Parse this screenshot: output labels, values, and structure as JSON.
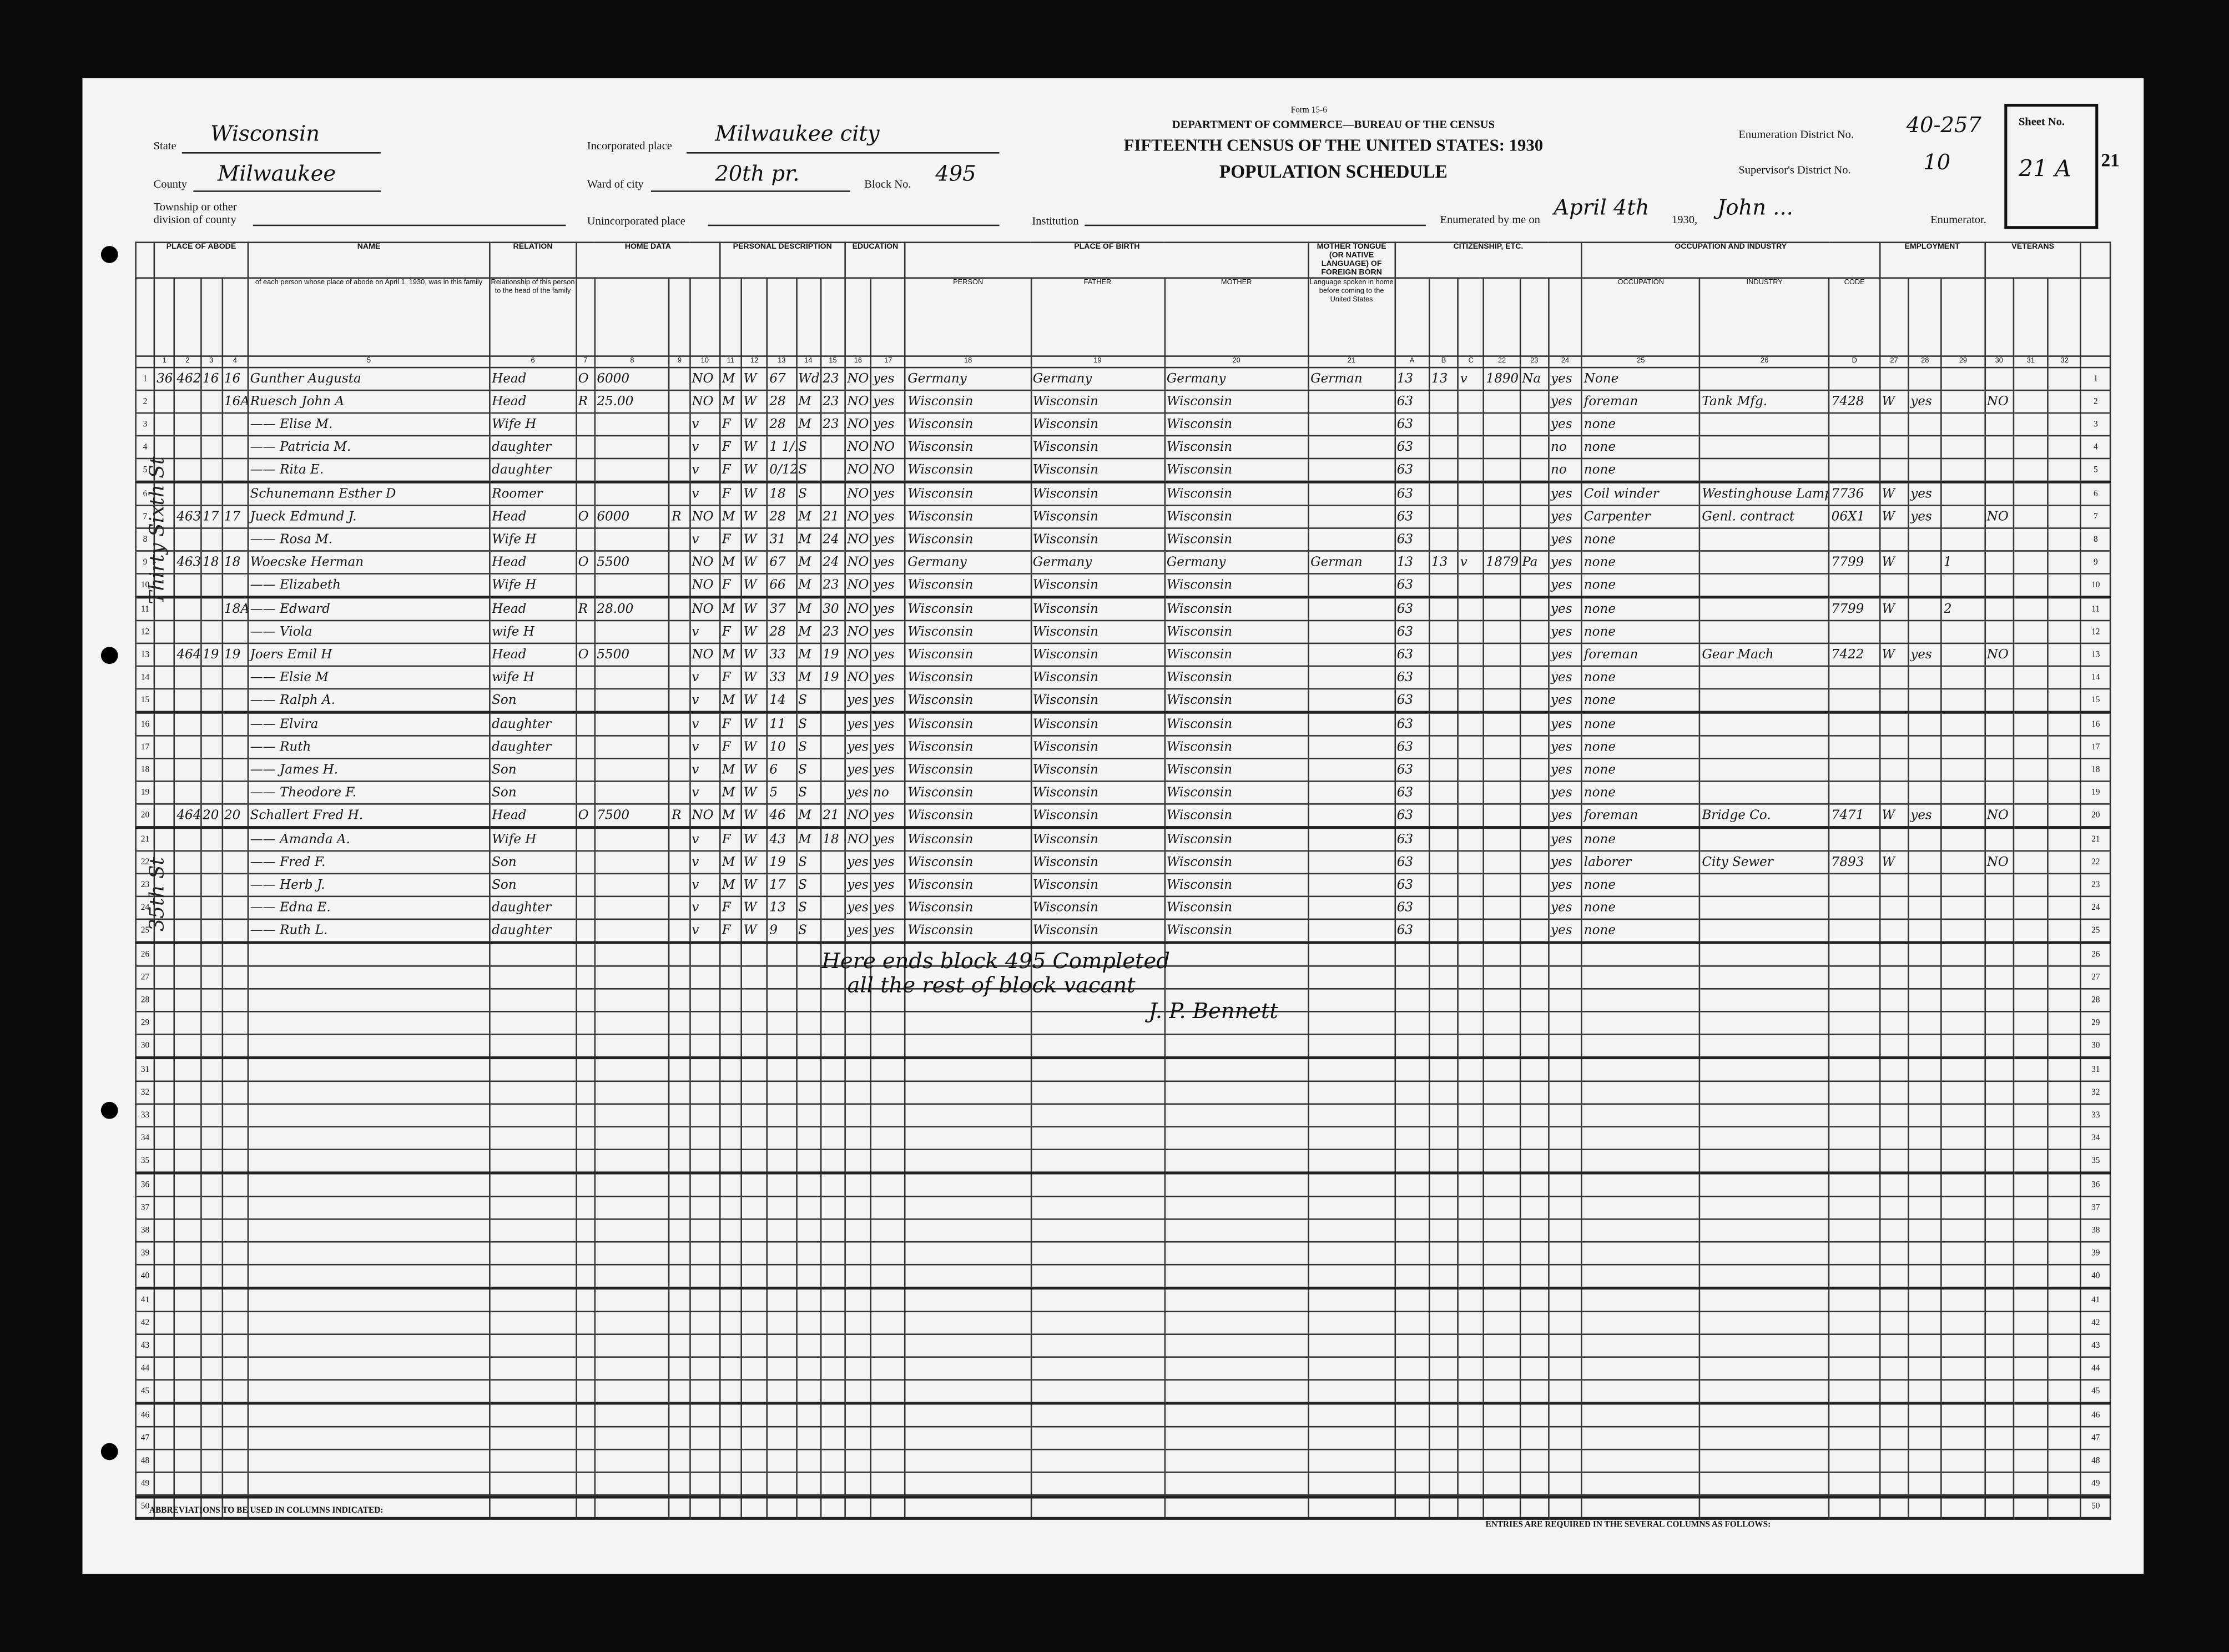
{
  "header": {
    "form_no": "Form 15-6",
    "department": "DEPARTMENT OF COMMERCE—BUREAU OF THE CENSUS",
    "title": "FIFTEENTH CENSUS OF THE UNITED STATES: 1930",
    "subtitle": "POPULATION SCHEDULE",
    "state_label": "State",
    "state": "Wisconsin",
    "county_label": "County",
    "county": "Milwaukee",
    "township_label": "Township or other division of county",
    "township": "",
    "incorporated_label": "Incorporated place",
    "incorporated": "Milwaukee city",
    "ward_label": "Ward of city",
    "ward": "20th pr.",
    "block_label": "Block No.",
    "block": "495",
    "unincorporated_label": "Unincorporated place",
    "unincorporated": "",
    "institution_label": "Institution",
    "institution": "",
    "ed_label": "Enumeration District No.",
    "ed": "40-257",
    "supervisor_label": "Supervisor's District No.",
    "supervisor": "10",
    "enumerated_label": "Enumerated by me on",
    "enumerated_date": "April 4th",
    "year": "1930,",
    "enumerator": "John ...",
    "enumerator_label": "Enumerator.",
    "sheet_label": "Sheet No.",
    "sheet": "21 A",
    "stamp": "21"
  },
  "column_groups": [
    "PLACE OF ABODE",
    "NAME",
    "RELATION",
    "HOME DATA",
    "PERSONAL DESCRIPTION",
    "EDUCATION",
    "PLACE OF BIRTH",
    "MOTHER TONGUE (OR NATIVE LANGUAGE) OF FOREIGN BORN",
    "CITIZENSHIP, ETC.",
    "OCCUPATION AND INDUSTRY",
    "EMPLOYMENT",
    "VETERANS"
  ],
  "column_headers": {
    "name": "of each person whose place of abode on April 1, 1930, was in this family",
    "relation": "Relationship of this person to the head of the family",
    "person": "PERSON",
    "father": "FATHER",
    "mother": "MOTHER",
    "tongue": "Language spoken in home before coming to the United States",
    "code": "CODE",
    "occupation": "OCCUPATION",
    "industry": "INDUSTRY",
    "code_d": "CODE"
  },
  "column_numbers": [
    "",
    "1",
    "2",
    "3",
    "4",
    "5",
    "6",
    "7",
    "8",
    "9",
    "10",
    "11",
    "12",
    "13",
    "14",
    "15",
    "16",
    "17",
    "18",
    "19",
    "20",
    "21",
    "A",
    "B",
    "C",
    "22",
    "23",
    "24",
    "25",
    "26",
    "D",
    "27",
    "28",
    "29",
    "30",
    "31",
    "32",
    ""
  ],
  "rows": [
    {
      "c1": "36",
      "house": "4624",
      "dw": "16",
      "fam": "16",
      "name": "Gunther Augusta",
      "rel": "Head",
      "ten": "O",
      "val": "6000",
      "radio": "",
      "farm": "NO",
      "sex": "M",
      "race": "W",
      "age": "67",
      "mar": "Wd",
      "agem": "23",
      "sch": "NO",
      "read": "yes",
      "bp": "Germany",
      "bf": "Germany",
      "bm": "Germany",
      "tongue": "German",
      "a": "13",
      "b": "13",
      "c": "v",
      "imm": "1890",
      "nat": "Na",
      "eng": "yes",
      "occ": "None",
      "ind": "",
      "d": "",
      "cls": "",
      "emp": "",
      "un": "",
      "vet": ""
    },
    {
      "c1": "",
      "house": "",
      "dw": "",
      "fam": "16A",
      "name": "Ruesch John A",
      "rel": "Head",
      "ten": "R",
      "val": "25.00",
      "radio": "",
      "farm": "NO",
      "sex": "M",
      "race": "W",
      "age": "28",
      "mar": "M",
      "agem": "23",
      "sch": "NO",
      "read": "yes",
      "bp": "Wisconsin",
      "bf": "Wisconsin",
      "bm": "Wisconsin",
      "tongue": "",
      "a": "63",
      "b": "",
      "c": "",
      "imm": "",
      "nat": "",
      "eng": "yes",
      "occ": "foreman",
      "ind": "Tank Mfg.",
      "d": "7428",
      "cls": "W",
      "emp": "yes",
      "un": "",
      "vet": "NO"
    },
    {
      "c1": "",
      "house": "",
      "dw": "",
      "fam": "",
      "name": "—— Elise M.",
      "rel": "Wife H",
      "ten": "",
      "val": "",
      "radio": "",
      "farm": "v",
      "sex": "F",
      "race": "W",
      "age": "28",
      "mar": "M",
      "agem": "23",
      "sch": "NO",
      "read": "yes",
      "bp": "Wisconsin",
      "bf": "Wisconsin",
      "bm": "Wisconsin",
      "tongue": "",
      "a": "63",
      "b": "",
      "c": "",
      "imm": "",
      "nat": "",
      "eng": "yes",
      "occ": "none",
      "ind": "",
      "d": "",
      "cls": "",
      "emp": "",
      "un": "",
      "vet": ""
    },
    {
      "c1": "",
      "house": "",
      "dw": "",
      "fam": "",
      "name": "—— Patricia M.",
      "rel": "daughter",
      "ten": "",
      "val": "",
      "radio": "",
      "farm": "v",
      "sex": "F",
      "race": "W",
      "age": "1 1/12",
      "mar": "S",
      "agem": "",
      "sch": "NO",
      "read": "NO",
      "bp": "Wisconsin",
      "bf": "Wisconsin",
      "bm": "Wisconsin",
      "tongue": "",
      "a": "63",
      "b": "",
      "c": "",
      "imm": "",
      "nat": "",
      "eng": "no",
      "occ": "none",
      "ind": "",
      "d": "",
      "cls": "",
      "emp": "",
      "un": "",
      "vet": ""
    },
    {
      "c1": "",
      "house": "",
      "dw": "",
      "fam": "",
      "name": "—— Rita E.",
      "rel": "daughter",
      "ten": "",
      "val": "",
      "radio": "",
      "farm": "v",
      "sex": "F",
      "race": "W",
      "age": "0/12",
      "mar": "S",
      "agem": "",
      "sch": "NO",
      "read": "NO",
      "bp": "Wisconsin",
      "bf": "Wisconsin",
      "bm": "Wisconsin",
      "tongue": "",
      "a": "63",
      "b": "",
      "c": "",
      "imm": "",
      "nat": "",
      "eng": "no",
      "occ": "none",
      "ind": "",
      "d": "",
      "cls": "",
      "emp": "",
      "un": "",
      "vet": ""
    },
    {
      "c1": "",
      "house": "",
      "dw": "",
      "fam": "",
      "name": "Schunemann Esther D",
      "rel": "Roomer",
      "ten": "",
      "val": "",
      "radio": "",
      "farm": "v",
      "sex": "F",
      "race": "W",
      "age": "18",
      "mar": "S",
      "agem": "",
      "sch": "NO",
      "read": "yes",
      "bp": "Wisconsin",
      "bf": "Wisconsin",
      "bm": "Wisconsin",
      "tongue": "",
      "a": "63",
      "b": "",
      "c": "",
      "imm": "",
      "nat": "",
      "eng": "yes",
      "occ": "Coil winder",
      "ind": "Westinghouse Lamp Co.",
      "d": "7736",
      "cls": "W",
      "emp": "yes",
      "un": "",
      "vet": ""
    },
    {
      "c1": "",
      "house": "4630",
      "dw": "17",
      "fam": "17",
      "name": "Jueck Edmund J.",
      "rel": "Head",
      "ten": "O",
      "val": "6000",
      "radio": "R",
      "farm": "NO",
      "sex": "M",
      "race": "W",
      "age": "28",
      "mar": "M",
      "agem": "21",
      "sch": "NO",
      "read": "yes",
      "bp": "Wisconsin",
      "bf": "Wisconsin",
      "bm": "Wisconsin",
      "tongue": "",
      "a": "63",
      "b": "",
      "c": "",
      "imm": "",
      "nat": "",
      "eng": "yes",
      "occ": "Carpenter",
      "ind": "Genl. contract",
      "d": "06X1",
      "cls": "W",
      "emp": "yes",
      "un": "",
      "vet": "NO"
    },
    {
      "c1": "",
      "house": "",
      "dw": "",
      "fam": "",
      "name": "—— Rosa M.",
      "rel": "Wife H",
      "ten": "",
      "val": "",
      "radio": "",
      "farm": "v",
      "sex": "F",
      "race": "W",
      "age": "31",
      "mar": "M",
      "agem": "24",
      "sch": "NO",
      "read": "yes",
      "bp": "Wisconsin",
      "bf": "Wisconsin",
      "bm": "Wisconsin",
      "tongue": "",
      "a": "63",
      "b": "",
      "c": "",
      "imm": "",
      "nat": "",
      "eng": "yes",
      "occ": "none",
      "ind": "",
      "d": "",
      "cls": "",
      "emp": "",
      "un": "",
      "vet": ""
    },
    {
      "c1": "",
      "house": "4634",
      "dw": "18",
      "fam": "18",
      "name": "Woecske Herman",
      "rel": "Head",
      "ten": "O",
      "val": "5500",
      "radio": "",
      "farm": "NO",
      "sex": "M",
      "race": "W",
      "age": "67",
      "mar": "M",
      "agem": "24",
      "sch": "NO",
      "read": "yes",
      "bp": "Germany",
      "bf": "Germany",
      "bm": "Germany",
      "tongue": "German",
      "a": "13",
      "b": "13",
      "c": "v",
      "imm": "1879",
      "nat": "Pa",
      "eng": "yes",
      "occ": "none",
      "ind": "",
      "d": "7799",
      "cls": "W",
      "emp": "",
      "un": "1",
      "vet": ""
    },
    {
      "c1": "",
      "house": "",
      "dw": "",
      "fam": "",
      "name": "—— Elizabeth",
      "rel": "Wife H",
      "ten": "",
      "val": "",
      "radio": "",
      "farm": "NO",
      "sex": "F",
      "race": "W",
      "age": "66",
      "mar": "M",
      "agem": "23",
      "sch": "NO",
      "read": "yes",
      "bp": "Wisconsin",
      "bf": "Wisconsin",
      "bm": "Wisconsin",
      "tongue": "",
      "a": "63",
      "b": "",
      "c": "",
      "imm": "",
      "nat": "",
      "eng": "yes",
      "occ": "none",
      "ind": "",
      "d": "",
      "cls": "",
      "emp": "",
      "un": "",
      "vet": ""
    },
    {
      "c1": "",
      "house": "",
      "dw": "",
      "fam": "18A",
      "name": "—— Edward",
      "rel": "Head",
      "ten": "R",
      "val": "28.00",
      "radio": "",
      "farm": "NO",
      "sex": "M",
      "race": "W",
      "age": "37",
      "mar": "M",
      "agem": "30",
      "sch": "NO",
      "read": "yes",
      "bp": "Wisconsin",
      "bf": "Wisconsin",
      "bm": "Wisconsin",
      "tongue": "",
      "a": "63",
      "b": "",
      "c": "",
      "imm": "",
      "nat": "",
      "eng": "yes",
      "occ": "none",
      "ind": "",
      "d": "7799",
      "cls": "W",
      "emp": "",
      "un": "2",
      "vet": ""
    },
    {
      "c1": "",
      "house": "",
      "dw": "",
      "fam": "",
      "name": "—— Viola",
      "rel": "wife H",
      "ten": "",
      "val": "",
      "radio": "",
      "farm": "v",
      "sex": "F",
      "race": "W",
      "age": "28",
      "mar": "M",
      "agem": "23",
      "sch": "NO",
      "read": "yes",
      "bp": "Wisconsin",
      "bf": "Wisconsin",
      "bm": "Wisconsin",
      "tongue": "",
      "a": "63",
      "b": "",
      "c": "",
      "imm": "",
      "nat": "",
      "eng": "yes",
      "occ": "none",
      "ind": "",
      "d": "",
      "cls": "",
      "emp": "",
      "un": "",
      "vet": ""
    },
    {
      "c1": "",
      "house": "4640",
      "dw": "19",
      "fam": "19",
      "name": "Joers Emil H",
      "rel": "Head",
      "ten": "O",
      "val": "5500",
      "radio": "",
      "farm": "NO",
      "sex": "M",
      "race": "W",
      "age": "33",
      "mar": "M",
      "agem": "19",
      "sch": "NO",
      "read": "yes",
      "bp": "Wisconsin",
      "bf": "Wisconsin",
      "bm": "Wisconsin",
      "tongue": "",
      "a": "63",
      "b": "",
      "c": "",
      "imm": "",
      "nat": "",
      "eng": "yes",
      "occ": "foreman",
      "ind": "Gear Mach",
      "d": "7422",
      "cls": "W",
      "emp": "yes",
      "un": "",
      "vet": "NO"
    },
    {
      "c1": "",
      "house": "",
      "dw": "",
      "fam": "",
      "name": "—— Elsie M",
      "rel": "wife H",
      "ten": "",
      "val": "",
      "radio": "",
      "farm": "v",
      "sex": "F",
      "race": "W",
      "age": "33",
      "mar": "M",
      "agem": "19",
      "sch": "NO",
      "read": "yes",
      "bp": "Wisconsin",
      "bf": "Wisconsin",
      "bm": "Wisconsin",
      "tongue": "",
      "a": "63",
      "b": "",
      "c": "",
      "imm": "",
      "nat": "",
      "eng": "yes",
      "occ": "none",
      "ind": "",
      "d": "",
      "cls": "",
      "emp": "",
      "un": "",
      "vet": ""
    },
    {
      "c1": "",
      "house": "",
      "dw": "",
      "fam": "",
      "name": "—— Ralph A.",
      "rel": "Son",
      "ten": "",
      "val": "",
      "radio": "",
      "farm": "v",
      "sex": "M",
      "race": "W",
      "age": "14",
      "mar": "S",
      "agem": "",
      "sch": "yes",
      "read": "yes",
      "bp": "Wisconsin",
      "bf": "Wisconsin",
      "bm": "Wisconsin",
      "tongue": "",
      "a": "63",
      "b": "",
      "c": "",
      "imm": "",
      "nat": "",
      "eng": "yes",
      "occ": "none",
      "ind": "",
      "d": "",
      "cls": "",
      "emp": "",
      "un": "",
      "vet": ""
    },
    {
      "c1": "",
      "house": "",
      "dw": "",
      "fam": "",
      "name": "—— Elvira",
      "rel": "daughter",
      "ten": "",
      "val": "",
      "radio": "",
      "farm": "v",
      "sex": "F",
      "race": "W",
      "age": "11",
      "mar": "S",
      "agem": "",
      "sch": "yes",
      "read": "yes",
      "bp": "Wisconsin",
      "bf": "Wisconsin",
      "bm": "Wisconsin",
      "tongue": "",
      "a": "63",
      "b": "",
      "c": "",
      "imm": "",
      "nat": "",
      "eng": "yes",
      "occ": "none",
      "ind": "",
      "d": "",
      "cls": "",
      "emp": "",
      "un": "",
      "vet": ""
    },
    {
      "c1": "",
      "house": "",
      "dw": "",
      "fam": "",
      "name": "—— Ruth",
      "rel": "daughter",
      "ten": "",
      "val": "",
      "radio": "",
      "farm": "v",
      "sex": "F",
      "race": "W",
      "age": "10",
      "mar": "S",
      "agem": "",
      "sch": "yes",
      "read": "yes",
      "bp": "Wisconsin",
      "bf": "Wisconsin",
      "bm": "Wisconsin",
      "tongue": "",
      "a": "63",
      "b": "",
      "c": "",
      "imm": "",
      "nat": "",
      "eng": "yes",
      "occ": "none",
      "ind": "",
      "d": "",
      "cls": "",
      "emp": "",
      "un": "",
      "vet": ""
    },
    {
      "c1": "",
      "house": "",
      "dw": "",
      "fam": "",
      "name": "—— James H.",
      "rel": "Son",
      "ten": "",
      "val": "",
      "radio": "",
      "farm": "v",
      "sex": "M",
      "race": "W",
      "age": "6",
      "mar": "S",
      "agem": "",
      "sch": "yes",
      "read": "yes",
      "bp": "Wisconsin",
      "bf": "Wisconsin",
      "bm": "Wisconsin",
      "tongue": "",
      "a": "63",
      "b": "",
      "c": "",
      "imm": "",
      "nat": "",
      "eng": "yes",
      "occ": "none",
      "ind": "",
      "d": "",
      "cls": "",
      "emp": "",
      "un": "",
      "vet": ""
    },
    {
      "c1": "",
      "house": "",
      "dw": "",
      "fam": "",
      "name": "—— Theodore F.",
      "rel": "Son",
      "ten": "",
      "val": "",
      "radio": "",
      "farm": "v",
      "sex": "M",
      "race": "W",
      "age": "5",
      "mar": "S",
      "agem": "",
      "sch": "yes",
      "read": "no",
      "bp": "Wisconsin",
      "bf": "Wisconsin",
      "bm": "Wisconsin",
      "tongue": "",
      "a": "63",
      "b": "",
      "c": "",
      "imm": "",
      "nat": "",
      "eng": "yes",
      "occ": "none",
      "ind": "",
      "d": "",
      "cls": "",
      "emp": "",
      "un": "",
      "vet": ""
    },
    {
      "c1": "",
      "house": "4642",
      "dw": "20",
      "fam": "20",
      "name": "Schallert Fred H.",
      "rel": "Head",
      "ten": "O",
      "val": "7500",
      "radio": "R",
      "farm": "NO",
      "sex": "M",
      "race": "W",
      "age": "46",
      "mar": "M",
      "agem": "21",
      "sch": "NO",
      "read": "yes",
      "bp": "Wisconsin",
      "bf": "Wisconsin",
      "bm": "Wisconsin",
      "tongue": "",
      "a": "63",
      "b": "",
      "c": "",
      "imm": "",
      "nat": "",
      "eng": "yes",
      "occ": "foreman",
      "ind": "Bridge Co.",
      "d": "7471",
      "cls": "W",
      "emp": "yes",
      "un": "",
      "vet": "NO"
    },
    {
      "c1": "",
      "house": "",
      "dw": "",
      "fam": "",
      "name": "—— Amanda A.",
      "rel": "Wife H",
      "ten": "",
      "val": "",
      "radio": "",
      "farm": "v",
      "sex": "F",
      "race": "W",
      "age": "43",
      "mar": "M",
      "agem": "18",
      "sch": "NO",
      "read": "yes",
      "bp": "Wisconsin",
      "bf": "Wisconsin",
      "bm": "Wisconsin",
      "tongue": "",
      "a": "63",
      "b": "",
      "c": "",
      "imm": "",
      "nat": "",
      "eng": "yes",
      "occ": "none",
      "ind": "",
      "d": "",
      "cls": "",
      "emp": "",
      "un": "",
      "vet": ""
    },
    {
      "c1": "",
      "house": "",
      "dw": "",
      "fam": "",
      "name": "—— Fred F.",
      "rel": "Son",
      "ten": "",
      "val": "",
      "radio": "",
      "farm": "v",
      "sex": "M",
      "race": "W",
      "age": "19",
      "mar": "S",
      "agem": "",
      "sch": "yes",
      "read": "yes",
      "bp": "Wisconsin",
      "bf": "Wisconsin",
      "bm": "Wisconsin",
      "tongue": "",
      "a": "63",
      "b": "",
      "c": "",
      "imm": "",
      "nat": "",
      "eng": "yes",
      "occ": "laborer",
      "ind": "City Sewer",
      "d": "7893",
      "cls": "W",
      "emp": "",
      "un": "",
      "vet": "NO"
    },
    {
      "c1": "",
      "house": "",
      "dw": "",
      "fam": "",
      "name": "—— Herb J.",
      "rel": "Son",
      "ten": "",
      "val": "",
      "radio": "",
      "farm": "v",
      "sex": "M",
      "race": "W",
      "age": "17",
      "mar": "S",
      "agem": "",
      "sch": "yes",
      "read": "yes",
      "bp": "Wisconsin",
      "bf": "Wisconsin",
      "bm": "Wisconsin",
      "tongue": "",
      "a": "63",
      "b": "",
      "c": "",
      "imm": "",
      "nat": "",
      "eng": "yes",
      "occ": "none",
      "ind": "",
      "d": "",
      "cls": "",
      "emp": "",
      "un": "",
      "vet": ""
    },
    {
      "c1": "",
      "house": "",
      "dw": "",
      "fam": "",
      "name": "—— Edna E.",
      "rel": "daughter",
      "ten": "",
      "val": "",
      "radio": "",
      "farm": "v",
      "sex": "F",
      "race": "W",
      "age": "13",
      "mar": "S",
      "agem": "",
      "sch": "yes",
      "read": "yes",
      "bp": "Wisconsin",
      "bf": "Wisconsin",
      "bm": "Wisconsin",
      "tongue": "",
      "a": "63",
      "b": "",
      "c": "",
      "imm": "",
      "nat": "",
      "eng": "yes",
      "occ": "none",
      "ind": "",
      "d": "",
      "cls": "",
      "emp": "",
      "un": "",
      "vet": ""
    },
    {
      "c1": "",
      "house": "",
      "dw": "",
      "fam": "",
      "name": "—— Ruth L.",
      "rel": "daughter",
      "ten": "",
      "val": "",
      "radio": "",
      "farm": "v",
      "sex": "F",
      "race": "W",
      "age": "9",
      "mar": "S",
      "agem": "",
      "sch": "yes",
      "read": "yes",
      "bp": "Wisconsin",
      "bf": "Wisconsin",
      "bm": "Wisconsin",
      "tongue": "",
      "a": "63",
      "b": "",
      "c": "",
      "imm": "",
      "nat": "",
      "eng": "yes",
      "occ": "none",
      "ind": "",
      "d": "",
      "cls": "",
      "emp": "",
      "un": "",
      "vet": ""
    }
  ],
  "total_lines": 50,
  "margin_notes": [
    "Thirty Sixth St",
    "35th St"
  ],
  "notes": {
    "line1": "Here ends block 495 Completed",
    "line2": "all the rest of block vacant",
    "signature": "J. P. Bennett"
  },
  "footer": {
    "abbrev_title": "ABBREVIATIONS TO BE USED IN COLUMNS INDICATED:",
    "entries_title": "ENTRIES ARE REQUIRED IN THE SEVERAL COLUMNS AS FOLLOWS:"
  }
}
